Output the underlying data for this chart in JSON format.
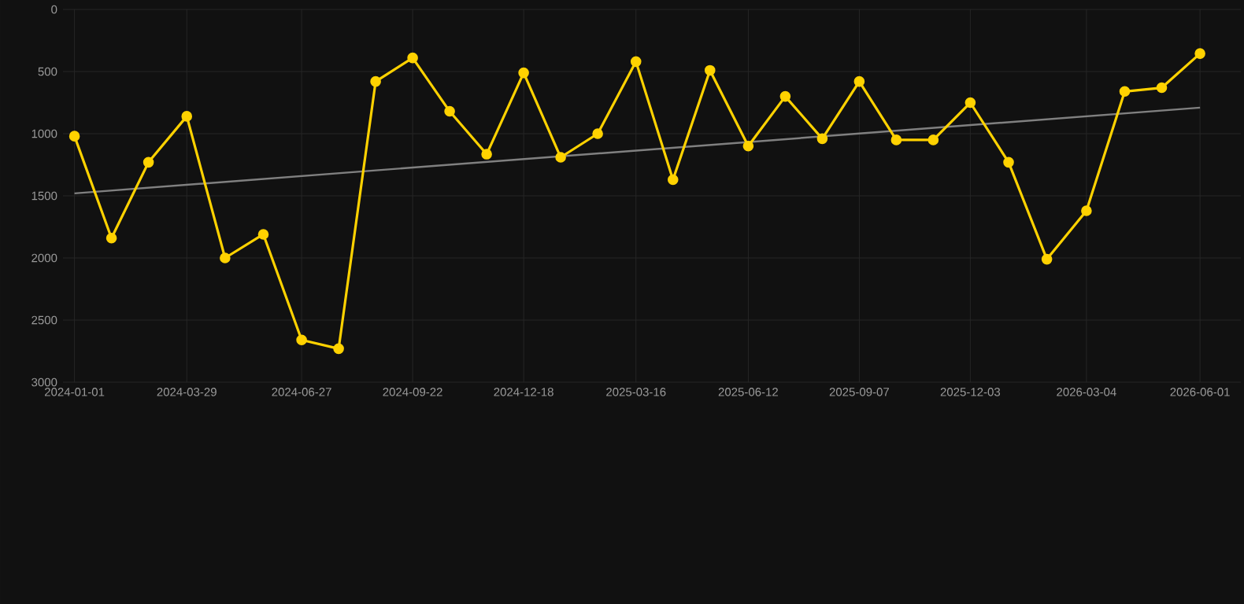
{
  "chart_data": {
    "type": "line",
    "xlim": [
      "2023-12-23",
      "2026-07-03"
    ],
    "ylim": [
      3000,
      0
    ],
    "xticks": [
      "2024-01-01",
      "2024-03-29",
      "2024-06-27",
      "2024-09-22",
      "2024-12-18",
      "2025-03-16",
      "2025-06-12",
      "2025-09-07",
      "2025-12-03",
      "2026-03-04",
      "2026-06-01"
    ],
    "yticks": [
      0,
      500,
      1000,
      1500,
      2000,
      2500,
      3000
    ],
    "grid": true,
    "marker": "circle",
    "line_style": "solid",
    "series": [
      {
        "color": "#ffd200",
        "x": [
          "2024-01-01",
          "2024-01-30",
          "2024-02-28",
          "2024-03-29",
          "2024-04-28",
          "2024-05-28",
          "2024-06-27",
          "2024-07-26",
          "2024-08-24",
          "2024-09-22",
          "2024-10-21",
          "2024-11-19",
          "2024-12-18",
          "2025-01-16",
          "2025-02-14",
          "2025-03-16",
          "2025-04-14",
          "2025-05-13",
          "2025-06-12",
          "2025-07-11",
          "2025-08-09",
          "2025-09-07",
          "2025-10-06",
          "2025-11-04",
          "2025-12-03",
          "2026-01-02",
          "2026-02-01",
          "2026-03-04",
          "2026-04-03",
          "2026-05-02",
          "2026-06-01"
        ],
        "values": [
          1020,
          1840,
          1230,
          860,
          2000,
          1810,
          2660,
          2730,
          580,
          390,
          820,
          1165,
          510,
          1190,
          1000,
          420,
          1370,
          490,
          1100,
          700,
          1040,
          580,
          1050,
          1050,
          750,
          1230,
          2010,
          1620,
          660,
          630,
          355
        ]
      },
      {
        "color": "#808080",
        "marker": "none",
        "x": [
          "2024-01-01",
          "2026-06-01"
        ],
        "values": [
          1480,
          790
        ]
      }
    ]
  }
}
